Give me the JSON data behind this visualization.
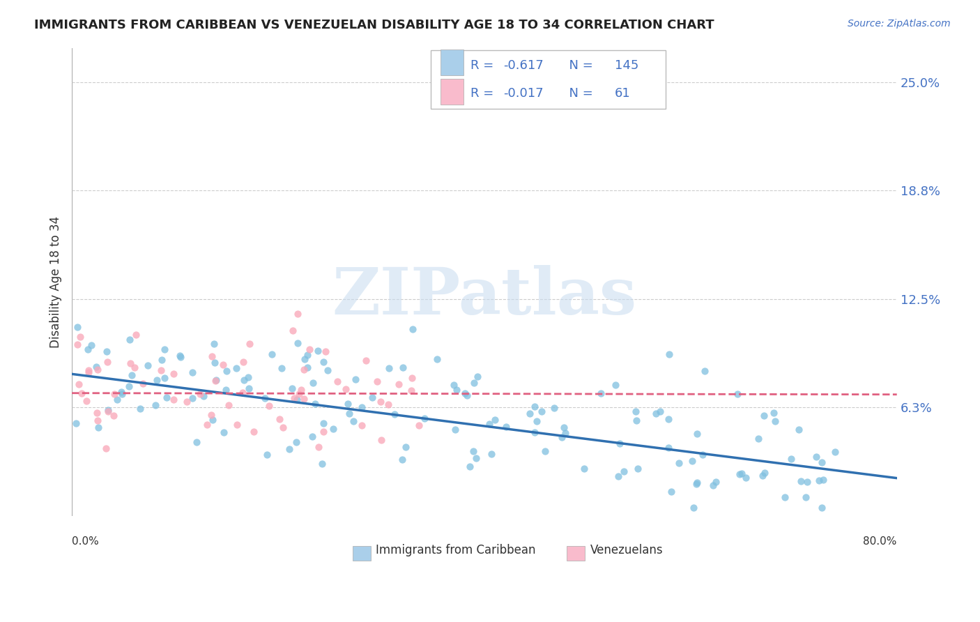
{
  "title": "IMMIGRANTS FROM CARIBBEAN VS VENEZUELAN DISABILITY AGE 18 TO 34 CORRELATION CHART",
  "source_text": "Source: ZipAtlas.com",
  "ylabel": "Disability Age 18 to 34",
  "xmin": 0.0,
  "xmax": 0.8,
  "ymin": 0.0,
  "ymax": 0.27,
  "yticks": [
    0.063,
    0.125,
    0.188,
    0.25
  ],
  "ytick_labels": [
    "6.3%",
    "12.5%",
    "18.8%",
    "25.0%"
  ],
  "caribbean_R": -0.617,
  "caribbean_N": 145,
  "venezuelan_R": -0.017,
  "venezuelan_N": 61,
  "caribbean_color": "#7FBFDF",
  "venezuelan_color": "#F9AABB",
  "caribbean_line_color": "#3070B0",
  "venezuelan_line_color": "#E06080",
  "caribbean_legend_color": "#AACFEA",
  "venezuelan_legend_color": "#F9BBCC",
  "watermark_color": "#C8DCF0",
  "background_color": "#ffffff",
  "grid_color": "#cccccc",
  "legend_label_caribbean": "Immigrants from Caribbean",
  "legend_label_venezuelan": "Venezuelans",
  "legend_text_color": "#4472c4",
  "caribbean_slope": -0.075,
  "caribbean_intercept": 0.082,
  "venezuelan_slope": -0.001,
  "venezuelan_intercept": 0.071,
  "seed": 42
}
